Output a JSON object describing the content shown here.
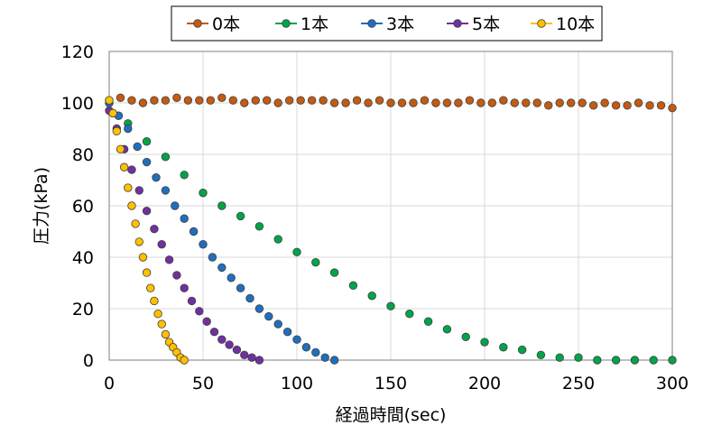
{
  "chart_data": {
    "type": "scatter",
    "xlabel": "経過時間(sec)",
    "ylabel": "圧力(kPa)",
    "xlim": [
      0,
      300
    ],
    "ylim": [
      0,
      120
    ],
    "xticks": [
      "0",
      "50",
      "100",
      "150",
      "200",
      "250",
      "300"
    ],
    "yticks": [
      "0",
      "20",
      "40",
      "60",
      "80",
      "100",
      "120"
    ],
    "grid": true,
    "legend_position": "top",
    "series": [
      {
        "name": "0本",
        "color": "#c55a11",
        "marker": "circle",
        "x": [
          0,
          6,
          12,
          18,
          24,
          30,
          36,
          42,
          48,
          54,
          60,
          66,
          72,
          78,
          84,
          90,
          96,
          102,
          108,
          114,
          120,
          126,
          132,
          138,
          144,
          150,
          156,
          162,
          168,
          174,
          180,
          186,
          192,
          198,
          204,
          210,
          216,
          222,
          228,
          234,
          240,
          246,
          252,
          258,
          264,
          270,
          276,
          282,
          288,
          294,
          300
        ],
        "y": [
          101,
          102,
          101,
          100,
          101,
          101,
          102,
          101,
          101,
          101,
          102,
          101,
          100,
          101,
          101,
          100,
          101,
          101,
          101,
          101,
          100,
          100,
          101,
          100,
          101,
          100,
          100,
          100,
          101,
          100,
          100,
          100,
          101,
          100,
          100,
          101,
          100,
          100,
          100,
          99,
          100,
          100,
          100,
          99,
          100,
          99,
          99,
          100,
          99,
          99,
          98
        ]
      },
      {
        "name": "1本",
        "color": "#00a44a",
        "marker": "circle",
        "x": [
          0,
          10,
          20,
          30,
          40,
          50,
          60,
          70,
          80,
          90,
          100,
          110,
          120,
          130,
          140,
          150,
          160,
          170,
          180,
          190,
          200,
          210,
          220,
          230,
          240,
          250,
          260,
          270,
          280,
          290,
          300
        ],
        "y": [
          100,
          92,
          85,
          79,
          72,
          65,
          60,
          56,
          52,
          47,
          42,
          38,
          34,
          29,
          25,
          21,
          18,
          15,
          12,
          9,
          7,
          5,
          4,
          2,
          1,
          1,
          0,
          0,
          0,
          0,
          0
        ]
      },
      {
        "name": "3本",
        "color": "#1f6fbf",
        "marker": "circle",
        "x": [
          0,
          5,
          10,
          15,
          20,
          25,
          30,
          35,
          40,
          45,
          50,
          55,
          60,
          65,
          70,
          75,
          80,
          85,
          90,
          95,
          100,
          105,
          110,
          115,
          120
        ],
        "y": [
          100,
          95,
          90,
          83,
          77,
          71,
          66,
          60,
          55,
          50,
          45,
          40,
          36,
          32,
          28,
          24,
          20,
          17,
          14,
          11,
          8,
          5,
          3,
          1,
          0
        ]
      },
      {
        "name": "5本",
        "color": "#7030a0",
        "marker": "circle",
        "x": [
          0,
          4,
          8,
          12,
          16,
          20,
          24,
          28,
          32,
          36,
          40,
          44,
          48,
          52,
          56,
          60,
          64,
          68,
          72,
          76,
          80
        ],
        "y": [
          97,
          90,
          82,
          74,
          66,
          58,
          51,
          45,
          39,
          33,
          28,
          23,
          19,
          15,
          11,
          8,
          6,
          4,
          2,
          1,
          0
        ]
      },
      {
        "name": "10本",
        "color": "#ffc000",
        "marker": "circle",
        "x": [
          0,
          2,
          4,
          6,
          8,
          10,
          12,
          14,
          16,
          18,
          20,
          22,
          24,
          26,
          28,
          30,
          32,
          34,
          36,
          38,
          40
        ],
        "y": [
          101,
          96,
          89,
          82,
          75,
          67,
          60,
          53,
          46,
          40,
          34,
          28,
          23,
          18,
          14,
          10,
          7,
          5,
          3,
          1,
          0
        ]
      }
    ]
  }
}
